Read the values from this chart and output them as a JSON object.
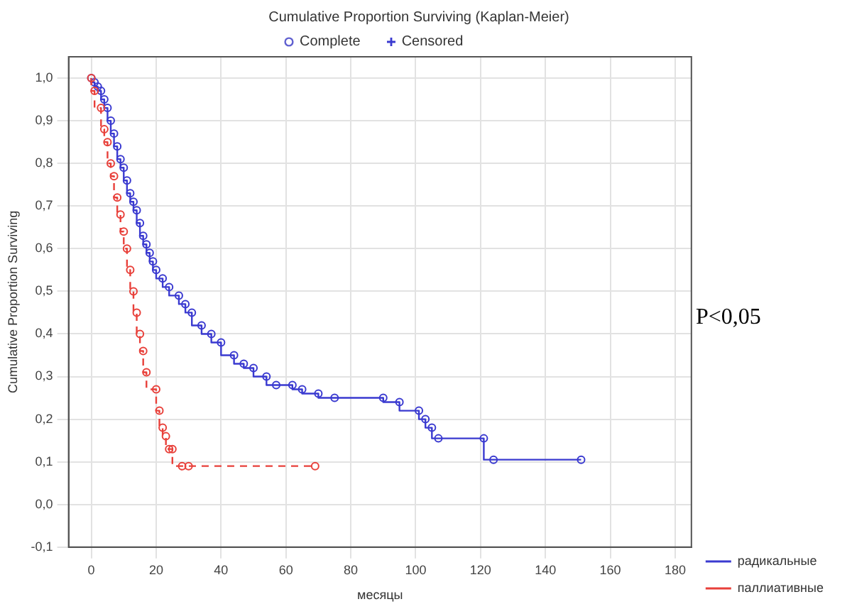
{
  "chart_data": {
    "type": "step",
    "title": "Cumulative Proportion Surviving (Kaplan-Meier)",
    "xlabel": "месяцы",
    "ylabel": "Cumulative Proportion Surviving",
    "annotations": [
      "Complete",
      "Censored",
      "P<0,05"
    ],
    "series": [
      {
        "name": "радикальные",
        "color": "#3a3ad0",
        "line_style": "solid",
        "x": [
          0,
          1,
          2,
          3,
          4,
          5,
          6,
          7,
          8,
          9,
          10,
          11,
          12,
          13,
          14,
          15,
          16,
          17,
          18,
          19,
          20,
          22,
          24,
          27,
          29,
          31,
          34,
          37,
          40,
          44,
          47,
          50,
          54,
          57,
          62,
          65,
          70,
          75,
          90,
          95,
          101,
          103,
          105,
          107,
          121,
          124,
          151
        ],
        "values": [
          1.0,
          0.99,
          0.98,
          0.97,
          0.95,
          0.93,
          0.9,
          0.87,
          0.84,
          0.81,
          0.79,
          0.76,
          0.73,
          0.71,
          0.69,
          0.66,
          0.63,
          0.61,
          0.59,
          0.57,
          0.55,
          0.53,
          0.51,
          0.49,
          0.47,
          0.45,
          0.42,
          0.4,
          0.38,
          0.35,
          0.33,
          0.32,
          0.3,
          0.28,
          0.28,
          0.27,
          0.26,
          0.25,
          0.25,
          0.24,
          0.22,
          0.2,
          0.18,
          0.155,
          0.155,
          0.105,
          0.105
        ]
      },
      {
        "name": "паллиативные",
        "color": "#e8403a",
        "line_style": "dashed",
        "x": [
          0,
          1,
          3,
          4,
          5,
          6,
          7,
          8,
          9,
          10,
          11,
          12,
          13,
          14,
          15,
          16,
          17,
          20,
          21,
          22,
          23,
          24,
          25,
          28,
          30,
          69
        ],
        "values": [
          1.0,
          0.97,
          0.93,
          0.88,
          0.85,
          0.8,
          0.77,
          0.72,
          0.68,
          0.64,
          0.6,
          0.55,
          0.5,
          0.45,
          0.4,
          0.36,
          0.31,
          0.27,
          0.22,
          0.18,
          0.16,
          0.13,
          0.13,
          0.09,
          0.09,
          0.09
        ]
      }
    ],
    "xlim": [
      -7,
      185
    ],
    "xticks": [
      0,
      20,
      40,
      60,
      80,
      100,
      120,
      140,
      160,
      180
    ],
    "ylim": [
      -0.1,
      1.05
    ],
    "yticks": [
      {
        "value": -0.1,
        "label": "-0,1"
      },
      {
        "value": 0.0,
        "label": "0,0"
      },
      {
        "value": 0.1,
        "label": "0,1"
      },
      {
        "value": 0.2,
        "label": "0,2"
      },
      {
        "value": 0.3,
        "label": "0,3"
      },
      {
        "value": 0.4,
        "label": "0,4"
      },
      {
        "value": 0.5,
        "label": "0,5"
      },
      {
        "value": 0.6,
        "label": "0,6"
      },
      {
        "value": 0.7,
        "label": "0,7"
      },
      {
        "value": 0.8,
        "label": "0,8"
      },
      {
        "value": 0.9,
        "label": "0,9"
      },
      {
        "value": 1.0,
        "label": "1,0"
      }
    ],
    "grid": true,
    "legend": "bottom right",
    "marker": "circle"
  }
}
